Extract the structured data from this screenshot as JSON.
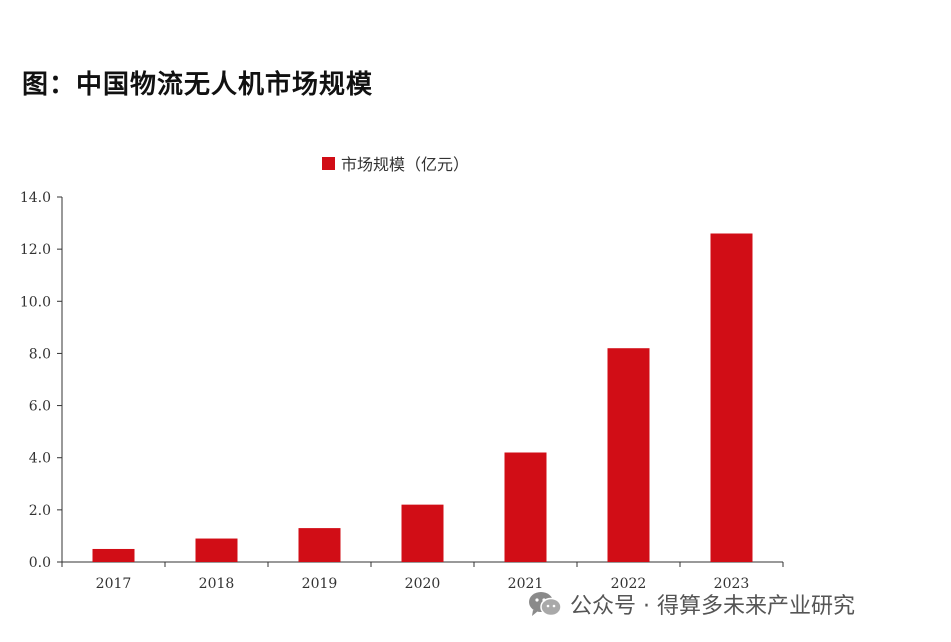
{
  "title": "图：中国物流无人机市场规模",
  "watermark": {
    "icon": "wechat-icon",
    "text": "公众号 · 得算多未来产业研究"
  },
  "colors": {
    "bar": "#d10d16",
    "axis": "#333333"
  },
  "chart_data": {
    "type": "bar",
    "categories": [
      "2017",
      "2018",
      "2019",
      "2020",
      "2021",
      "2022",
      "2023"
    ],
    "series": [
      {
        "name": "市场规模（亿元）",
        "values": [
          0.5,
          0.9,
          1.3,
          2.2,
          4.2,
          8.2,
          12.6
        ]
      }
    ],
    "ylim": [
      0,
      14
    ],
    "yticks": [
      "0.0",
      "2.0",
      "4.0",
      "6.0",
      "8.0",
      "10.0",
      "12.0",
      "14.0"
    ],
    "grid": false,
    "legend": "top-center"
  }
}
